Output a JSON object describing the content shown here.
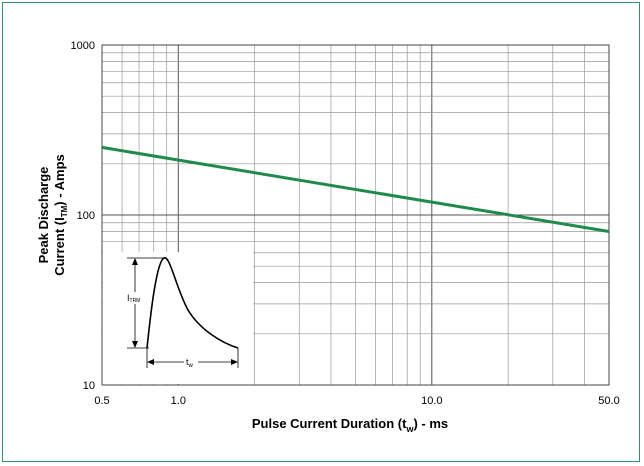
{
  "chart_data": {
    "type": "line",
    "title": "",
    "xlabel": "Pulse Current Duration (t",
    "xlabel_sub": "w",
    "xlabel_suffix": ") - ms",
    "ylabel_line1": "Peak Discharge",
    "ylabel_line2_prefix": "Current (I",
    "ylabel_line2_sub": "TM",
    "ylabel_line2_suffix": ") - Amps",
    "xscale": "log",
    "yscale": "log",
    "xlim": [
      0.5,
      50.0
    ],
    "ylim": [
      10,
      1000
    ],
    "grid": true,
    "x_tick_labels": [
      {
        "value": 0.5,
        "label": "0.5"
      },
      {
        "value": 1.0,
        "label": "1.0"
      },
      {
        "value": 10.0,
        "label": "10.0"
      },
      {
        "value": 50.0,
        "label": "50.0"
      }
    ],
    "y_tick_labels": [
      {
        "value": 10,
        "label": "10"
      },
      {
        "value": 100,
        "label": "100"
      },
      {
        "value": 1000,
        "label": "1000"
      }
    ],
    "series": [
      {
        "color": "#1f8a4c",
        "x": [
          0.5,
          50.0
        ],
        "y": [
          250,
          80
        ]
      }
    ],
    "inset": {
      "amplitude_label": "I",
      "amplitude_sub": "TRM",
      "width_label": "t",
      "width_sub": "w"
    }
  }
}
